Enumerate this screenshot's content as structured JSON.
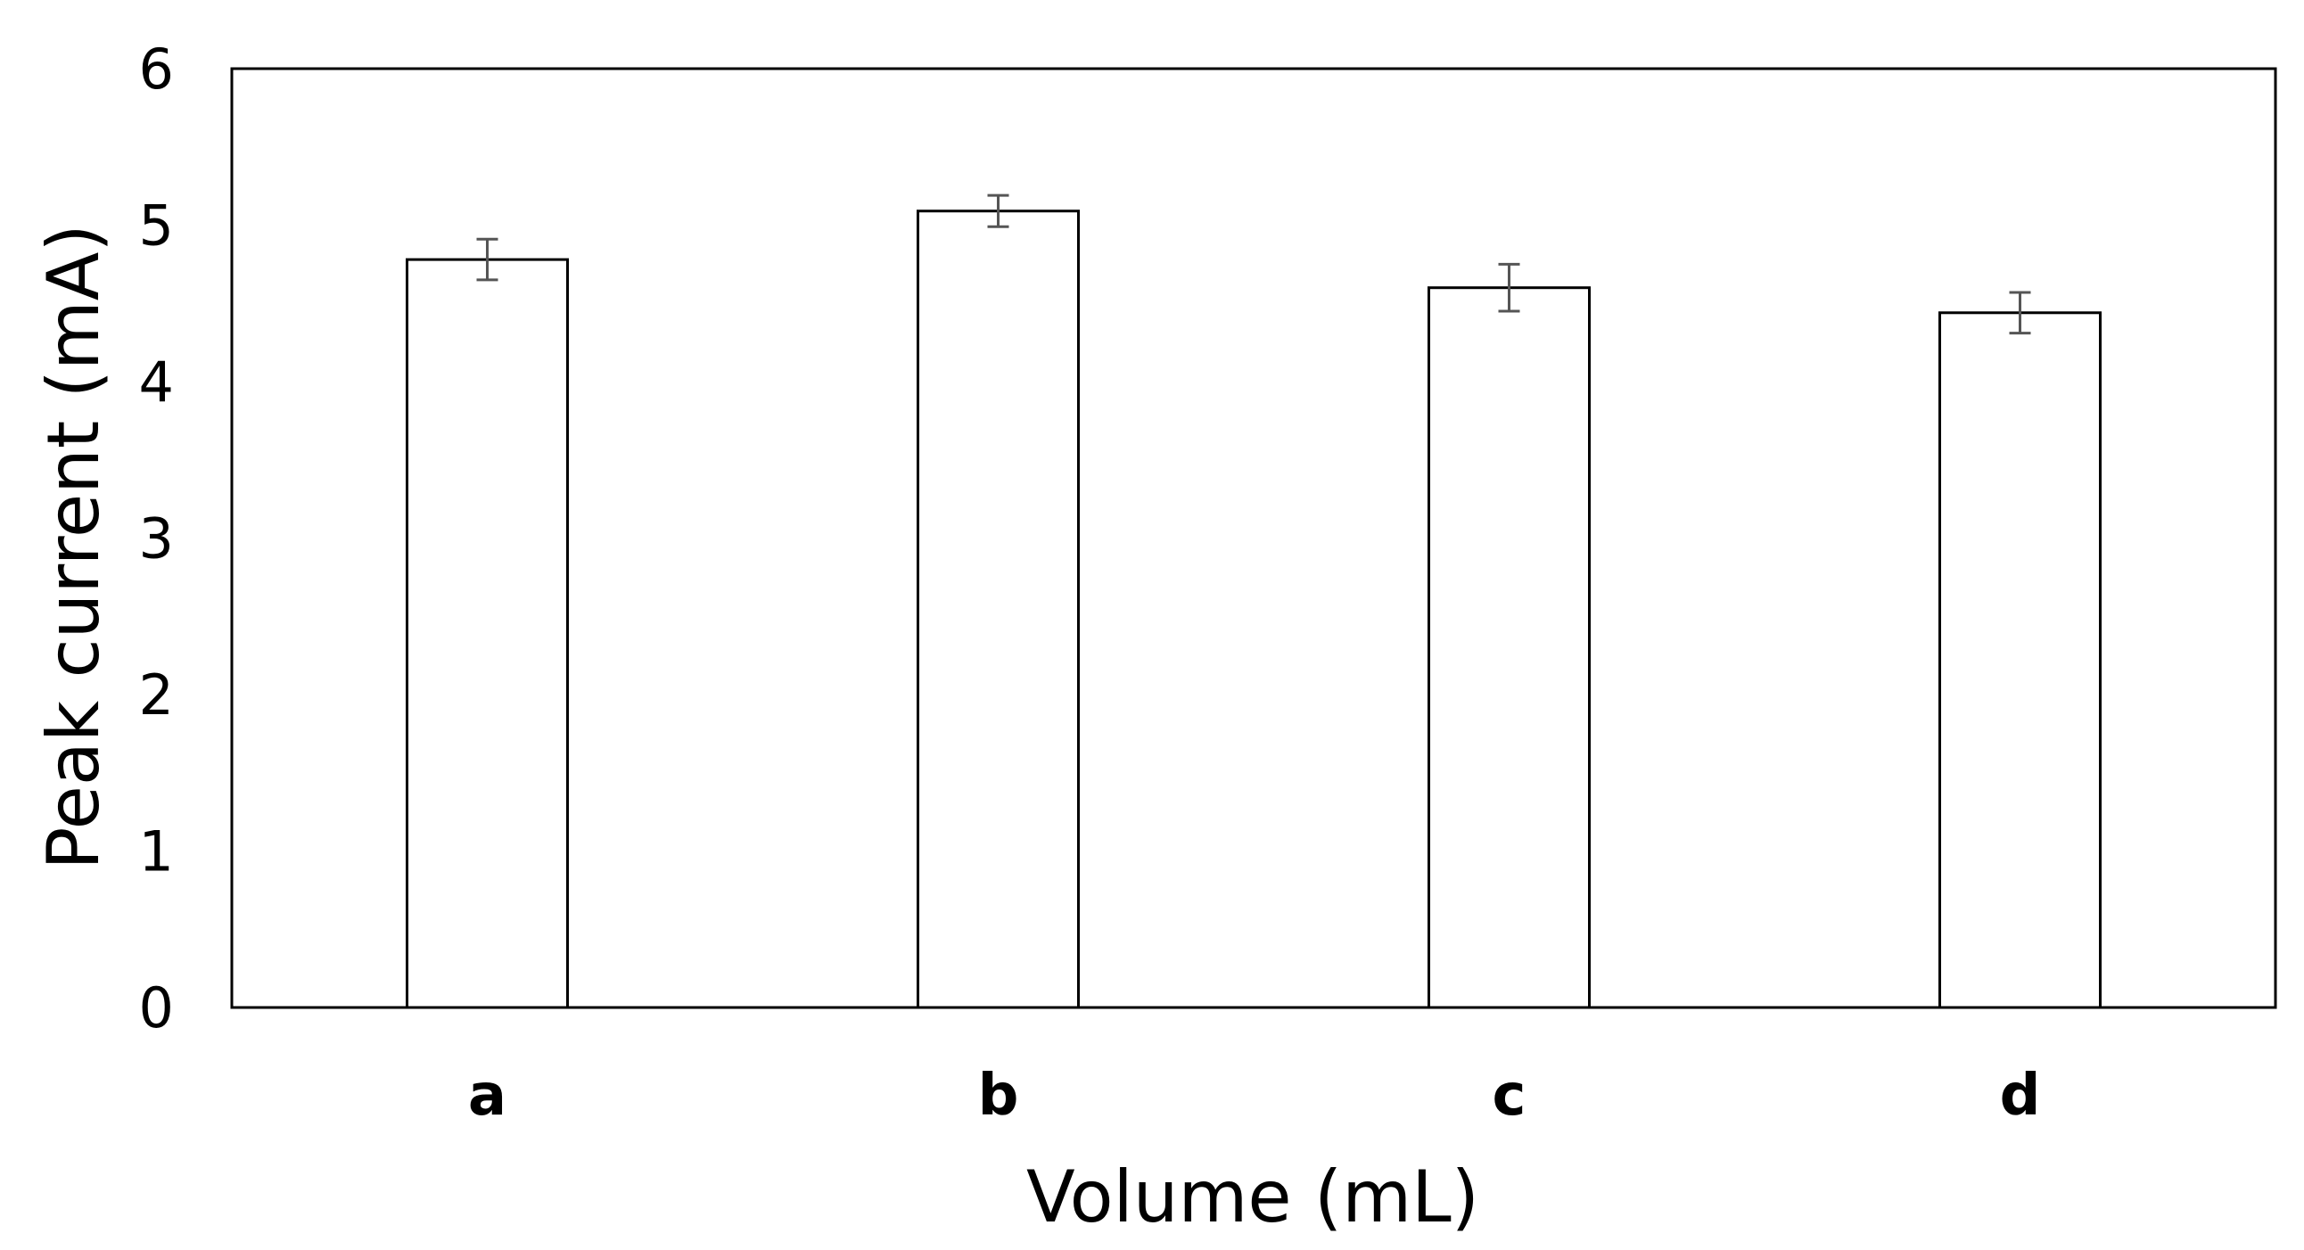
{
  "chart_data": {
    "type": "bar",
    "title": "",
    "xlabel": "Volume (mL)",
    "ylabel": "Peak current (mA)",
    "categories": [
      "a",
      "b",
      "c",
      "d"
    ],
    "values": [
      4.78,
      5.09,
      4.6,
      4.44
    ],
    "error": [
      0.13,
      0.1,
      0.15,
      0.13
    ],
    "ylim": [
      0,
      6
    ],
    "yticks": [
      "0",
      "1",
      "2",
      "3",
      "4",
      "5",
      "6"
    ],
    "grid": false,
    "legend": "none",
    "colors": {
      "bar_fill": "#ffffff",
      "bar_stroke": "#000000",
      "error_bar": "#555555",
      "frame": "#000000"
    }
  }
}
